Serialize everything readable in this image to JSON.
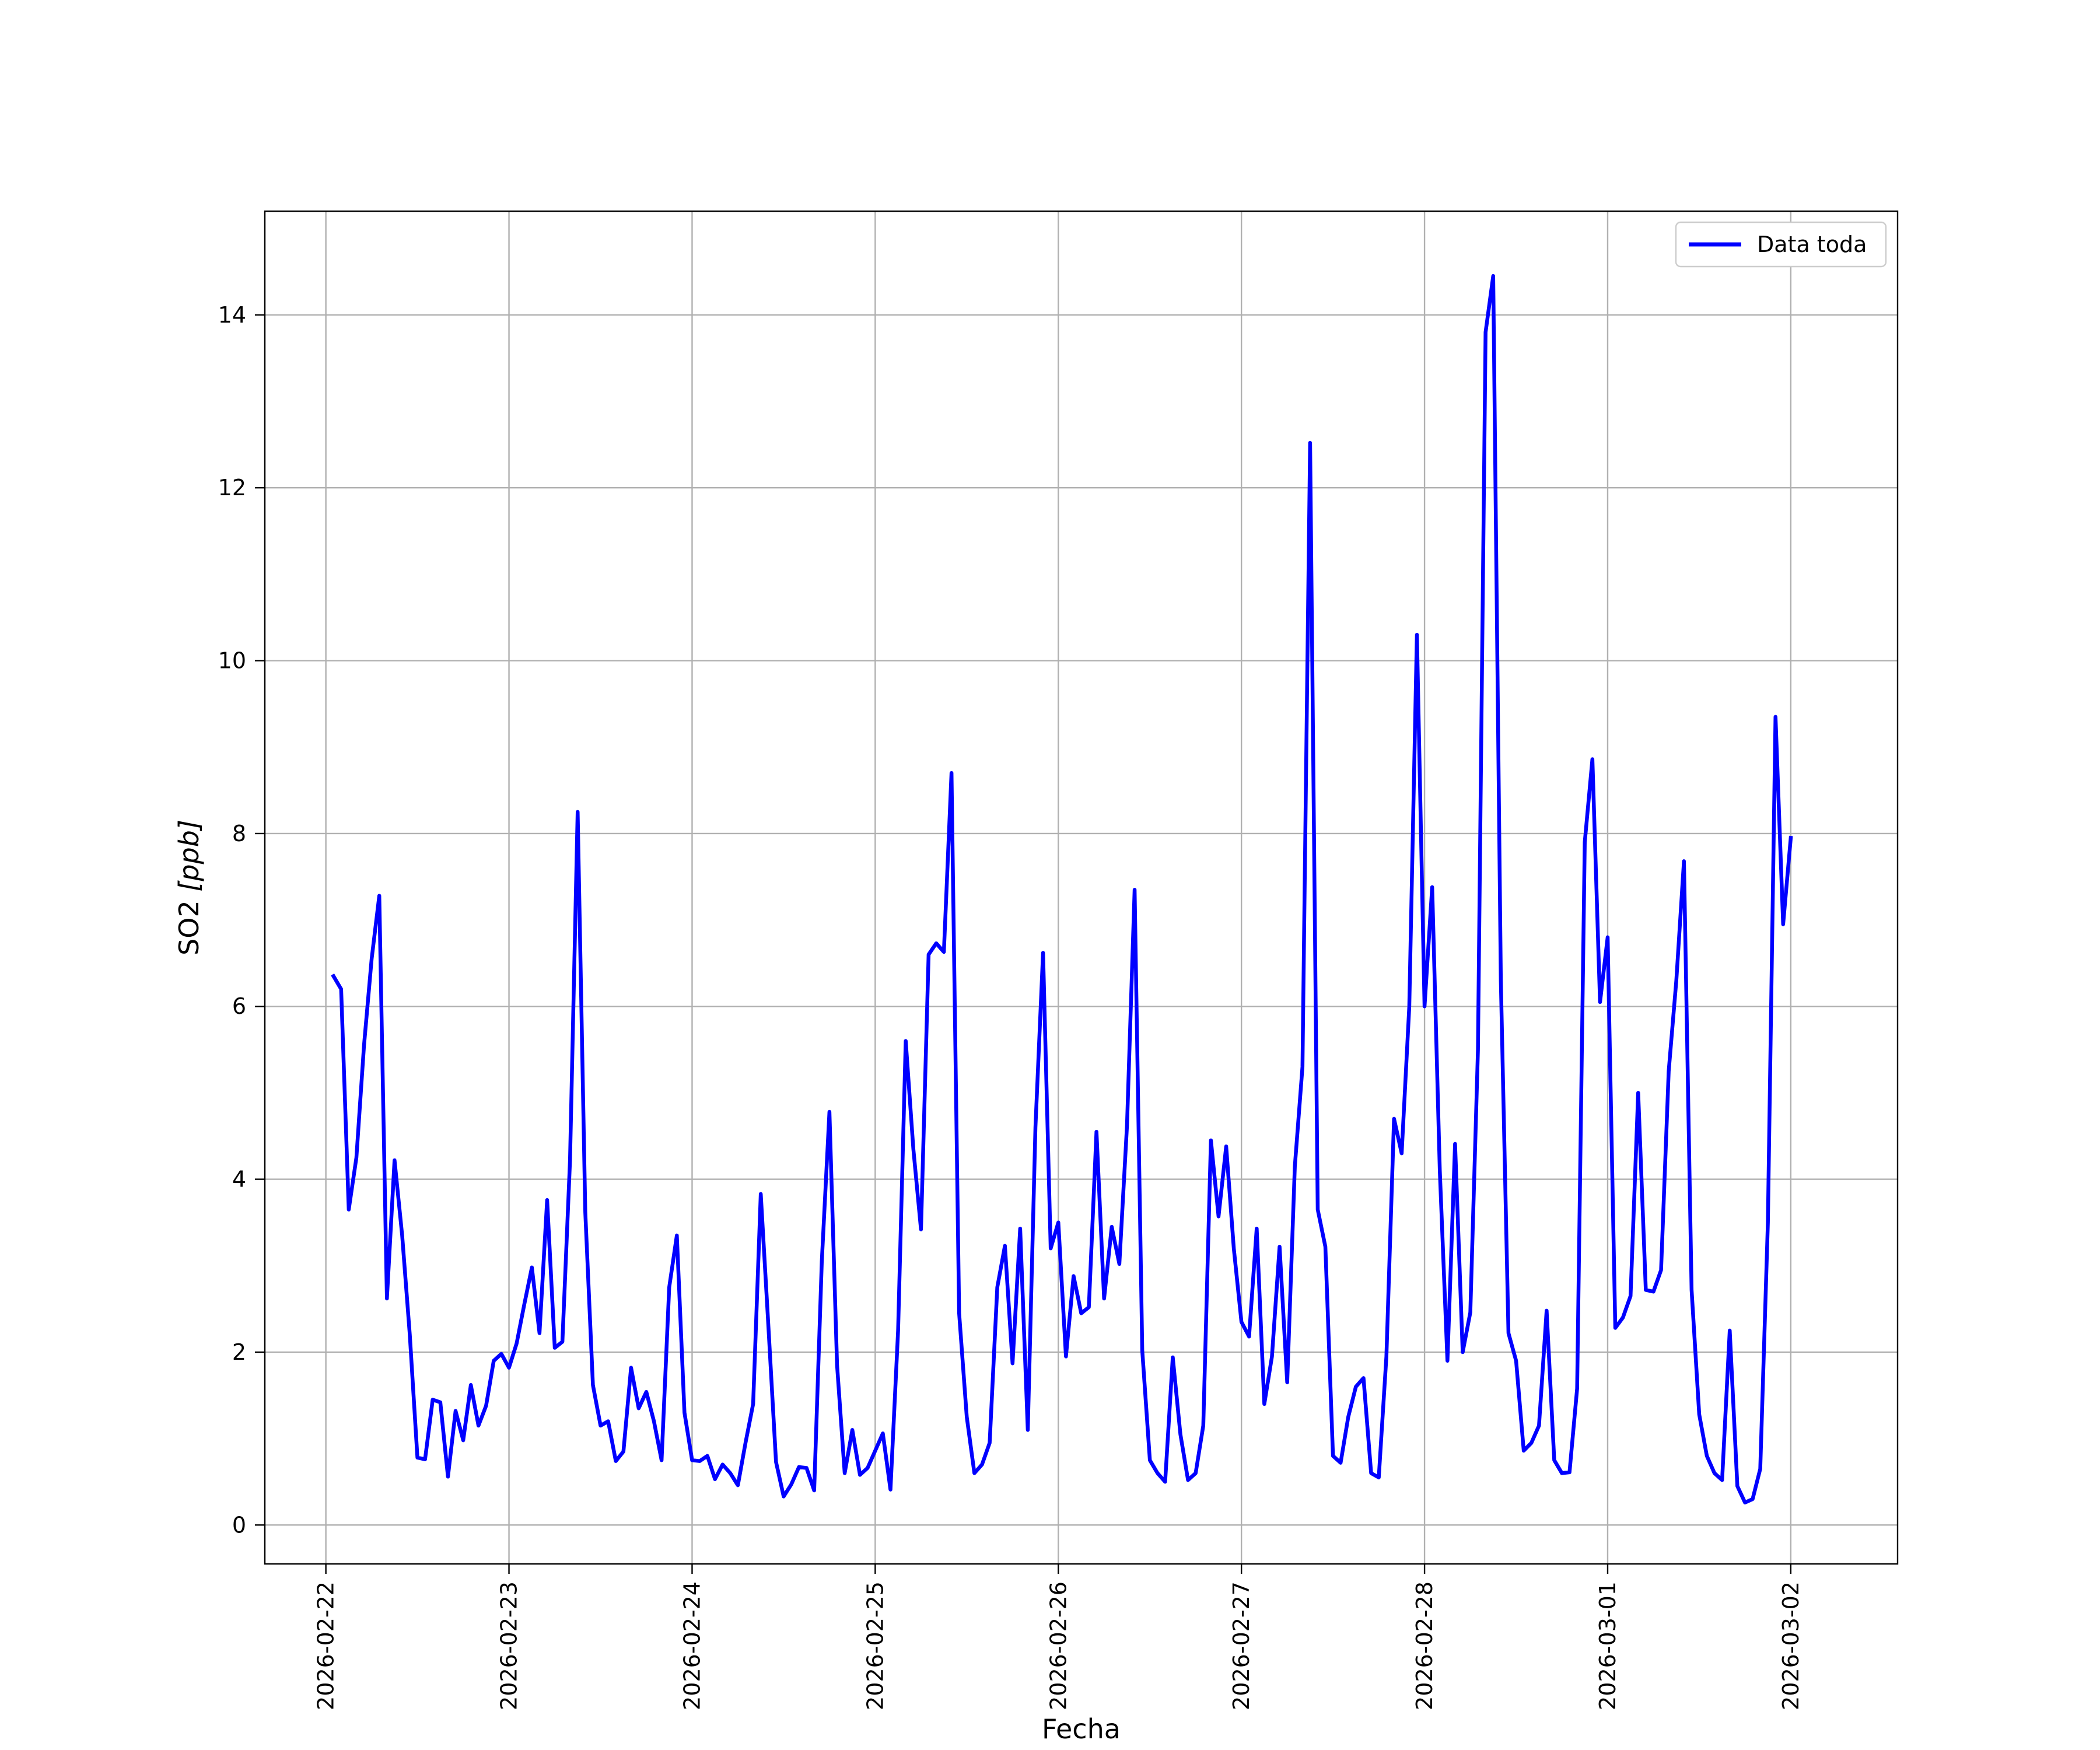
{
  "chart_data": {
    "type": "line",
    "title": "",
    "xlabel": "Fecha",
    "ylabel_main": "SO2 ",
    "ylabel_unit": "[ppb]",
    "x_axis_type": "date",
    "xlim": [
      "2026-02-21T16:00",
      "2026-03-02T14:00"
    ],
    "ylim": [
      -0.45,
      15.2
    ],
    "grid": true,
    "legend_position": "upper right",
    "x_ticks": [
      "2026-02-22",
      "2026-02-23",
      "2026-02-24",
      "2026-02-25",
      "2026-02-26",
      "2026-02-27",
      "2026-02-28",
      "2026-03-01",
      "2026-03-02"
    ],
    "y_ticks": [
      0,
      2,
      4,
      6,
      8,
      10,
      12,
      14
    ],
    "series": [
      {
        "name": "Data toda",
        "color": "#0000ff",
        "x_start": "2026-02-22T01:00",
        "x_step_hours": 1,
        "values": [
          6.35,
          6.2,
          3.65,
          4.25,
          5.55,
          6.55,
          7.28,
          2.62,
          4.22,
          3.35,
          2.2,
          0.78,
          0.76,
          1.45,
          1.42,
          0.56,
          1.32,
          0.98,
          1.62,
          1.15,
          1.38,
          1.9,
          1.98,
          1.82,
          2.1,
          2.55,
          2.98,
          2.22,
          3.76,
          2.05,
          2.12,
          4.22,
          8.25,
          3.62,
          1.62,
          1.15,
          1.2,
          0.74,
          0.85,
          1.82,
          1.35,
          1.54,
          1.2,
          0.75,
          2.75,
          3.35,
          1.3,
          0.75,
          0.74,
          0.8,
          0.53,
          0.7,
          0.6,
          0.46,
          0.95,
          1.4,
          3.83,
          2.3,
          0.73,
          0.33,
          0.47,
          0.67,
          0.66,
          0.4,
          3.05,
          4.78,
          1.85,
          0.6,
          1.1,
          0.58,
          0.66,
          0.86,
          1.06,
          0.41,
          2.25,
          5.6,
          4.35,
          3.42,
          6.6,
          6.73,
          6.63,
          8.7,
          2.45,
          1.25,
          0.6,
          0.7,
          0.95,
          2.75,
          3.23,
          1.87,
          3.43,
          1.1,
          4.6,
          6.62,
          3.2,
          3.5,
          1.95,
          2.88,
          2.45,
          2.52,
          4.55,
          2.62,
          3.45,
          3.02,
          4.62,
          7.35,
          2.02,
          0.75,
          0.6,
          0.5,
          1.94,
          1.05,
          0.52,
          0.6,
          1.15,
          4.45,
          3.57,
          4.38,
          3.2,
          2.35,
          2.18,
          3.43,
          1.4,
          1.95,
          3.22,
          1.65,
          4.15,
          5.3,
          12.52,
          3.65,
          3.22,
          0.8,
          0.72,
          1.25,
          1.6,
          1.7,
          0.6,
          0.55,
          1.95,
          4.7,
          4.3,
          6.0,
          10.3,
          6.0,
          7.38,
          4.1,
          1.9,
          4.41,
          2.0,
          2.46,
          5.5,
          13.8,
          14.45,
          6.3,
          2.22,
          1.9,
          0.86,
          0.95,
          1.15,
          2.48,
          0.75,
          0.6,
          0.61,
          1.58,
          7.9,
          8.86,
          6.05,
          6.8,
          2.28,
          2.4,
          2.65,
          5.0,
          2.72,
          2.7,
          2.95,
          5.25,
          6.3,
          7.68,
          2.72,
          1.28,
          0.8,
          0.6,
          0.52,
          2.25,
          0.45,
          0.26,
          0.3,
          0.65,
          3.5,
          9.35,
          6.95,
          7.95
        ]
      }
    ]
  }
}
